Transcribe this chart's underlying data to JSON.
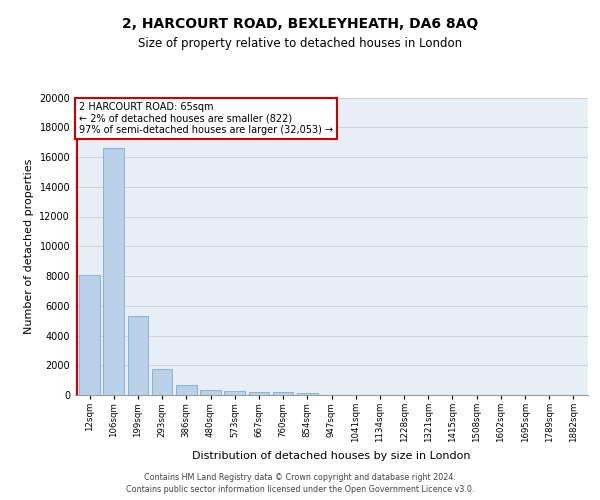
{
  "title1": "2, HARCOURT ROAD, BEXLEYHEATH, DA6 8AQ",
  "title2": "Size of property relative to detached houses in London",
  "xlabel": "Distribution of detached houses by size in London",
  "ylabel": "Number of detached properties",
  "categories": [
    "12sqm",
    "106sqm",
    "199sqm",
    "293sqm",
    "386sqm",
    "480sqm",
    "573sqm",
    "667sqm",
    "760sqm",
    "854sqm",
    "947sqm",
    "1041sqm",
    "1134sqm",
    "1228sqm",
    "1321sqm",
    "1415sqm",
    "1508sqm",
    "1602sqm",
    "1695sqm",
    "1789sqm",
    "1882sqm"
  ],
  "values": [
    8100,
    16600,
    5300,
    1750,
    700,
    350,
    270,
    220,
    180,
    160,
    0,
    0,
    0,
    0,
    0,
    0,
    0,
    0,
    0,
    0,
    0
  ],
  "bar_color": "#b8d0e8",
  "bar_edge_color": "#7aadd4",
  "subject_label": "2 HARCOURT ROAD: 65sqm",
  "annotation_line1": "← 2% of detached houses are smaller (822)",
  "annotation_line2": "97% of semi-detached houses are larger (32,053) →",
  "annotation_box_color": "#ffffff",
  "annotation_box_edge": "#cc0000",
  "subject_line_color": "#cc0000",
  "ylim": [
    0,
    20000
  ],
  "yticks": [
    0,
    2000,
    4000,
    6000,
    8000,
    10000,
    12000,
    14000,
    16000,
    18000,
    20000
  ],
  "grid_color": "#cccccc",
  "bg_color": "#e8eef6",
  "footer1": "Contains HM Land Registry data © Crown copyright and database right 2024.",
  "footer2": "Contains public sector information licensed under the Open Government Licence v3.0."
}
